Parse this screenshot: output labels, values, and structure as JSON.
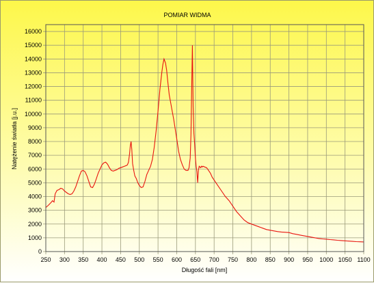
{
  "chart_data": {
    "type": "line",
    "title": "POMIAR WIDMA",
    "xlabel": "Długość fali [nm]",
    "ylabel": "Natężenie światła [j.u.]",
    "xlim": [
      250,
      1100
    ],
    "ylim": [
      0,
      16500
    ],
    "xticks": [
      250,
      300,
      350,
      400,
      450,
      500,
      550,
      600,
      650,
      700,
      750,
      800,
      850,
      900,
      950,
      1000,
      1050,
      1100
    ],
    "yticks": [
      0,
      1000,
      2000,
      3000,
      4000,
      5000,
      6000,
      7000,
      8000,
      9000,
      10000,
      11000,
      12000,
      13000,
      14000,
      15000,
      16000
    ],
    "grid": true,
    "legend": "none",
    "series_color": "#e8130f",
    "series": [
      {
        "x": [
          250,
          258,
          265,
          268,
          272,
          275,
          280,
          285,
          290,
          295,
          300,
          305,
          310,
          315,
          320,
          325,
          330,
          335,
          340,
          345,
          350,
          355,
          360,
          365,
          370,
          375,
          380,
          385,
          390,
          395,
          400,
          405,
          410,
          415,
          420,
          425,
          430,
          435,
          440,
          445,
          450,
          455,
          460,
          465,
          468,
          471,
          474,
          476,
          478,
          480,
          482,
          485,
          488,
          492,
          496,
          500,
          505,
          510,
          515,
          520,
          525,
          530,
          535,
          540,
          545,
          550,
          555,
          560,
          563,
          566,
          570,
          573,
          576,
          580,
          584,
          588,
          592,
          596,
          600,
          605,
          610,
          615,
          620,
          625,
          630,
          633,
          636,
          638,
          640,
          642,
          644,
          646,
          648,
          650,
          652,
          654,
          656,
          658,
          660,
          662,
          664,
          666,
          668,
          670,
          675,
          680,
          685,
          690,
          695,
          700,
          710,
          720,
          730,
          740,
          750,
          760,
          770,
          780,
          790,
          800,
          810,
          820,
          830,
          840,
          850,
          860,
          870,
          880,
          890,
          900,
          910,
          920,
          930,
          940,
          950,
          960,
          970,
          980,
          990,
          1000,
          1010,
          1020,
          1030,
          1040,
          1050,
          1060,
          1070,
          1080,
          1090,
          1100
        ],
        "y": [
          3200,
          3400,
          3600,
          3700,
          3600,
          4200,
          4450,
          4500,
          4600,
          4550,
          4400,
          4300,
          4200,
          4150,
          4200,
          4400,
          4700,
          5100,
          5500,
          5850,
          5900,
          5800,
          5500,
          5100,
          4700,
          4650,
          4900,
          5300,
          5700,
          6000,
          6300,
          6450,
          6500,
          6350,
          6100,
          5900,
          5850,
          5900,
          5950,
          6050,
          6100,
          6150,
          6200,
          6250,
          6300,
          6500,
          7100,
          7700,
          8000,
          7400,
          6400,
          5900,
          5500,
          5300,
          5000,
          4800,
          4650,
          4700,
          5100,
          5600,
          5900,
          6200,
          6700,
          7600,
          8800,
          10200,
          11800,
          13000,
          13600,
          14000,
          13700,
          13200,
          12400,
          11400,
          10800,
          10200,
          9600,
          8900,
          8200,
          7300,
          6700,
          6300,
          6000,
          5900,
          5900,
          6100,
          6800,
          8500,
          12000,
          15000,
          10500,
          8600,
          7800,
          6800,
          6200,
          5800,
          5000,
          5900,
          6200,
          6150,
          6100,
          6200,
          6150,
          6200,
          6150,
          6100,
          5900,
          5700,
          5400,
          5200,
          4800,
          4400,
          4000,
          3700,
          3300,
          2900,
          2600,
          2300,
          2100,
          2000,
          1900,
          1800,
          1700,
          1600,
          1550,
          1500,
          1450,
          1420,
          1400,
          1380,
          1300,
          1250,
          1200,
          1150,
          1100,
          1050,
          1000,
          950,
          920,
          900,
          870,
          850,
          820,
          800,
          780,
          760,
          740,
          720,
          710,
          700
        ]
      }
    ]
  }
}
